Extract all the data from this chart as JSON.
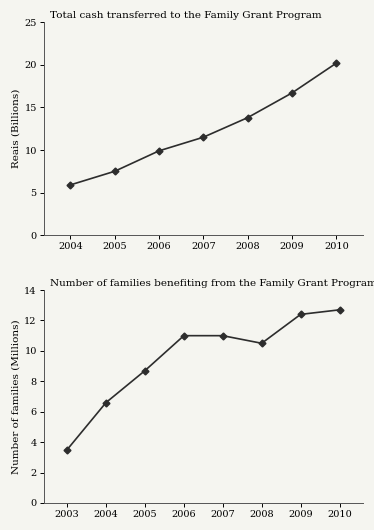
{
  "chart1": {
    "title": "Total cash transferred to the Family Grant Program",
    "x": [
      2004,
      2005,
      2006,
      2007,
      2008,
      2009,
      2010
    ],
    "y": [
      5.9,
      7.5,
      9.9,
      11.5,
      13.8,
      16.7,
      20.2
    ],
    "ylabel": "Reais (Billions)",
    "xlim": [
      2003.4,
      2010.6
    ],
    "ylim": [
      0,
      25
    ],
    "yticks": [
      0,
      5,
      10,
      15,
      20,
      25
    ],
    "xticks": [
      2004,
      2005,
      2006,
      2007,
      2008,
      2009,
      2010
    ]
  },
  "chart2": {
    "title": "Number of families benefiting from the Family Grant Program",
    "x": [
      2003,
      2004,
      2005,
      2006,
      2007,
      2008,
      2009,
      2010
    ],
    "y": [
      3.5,
      6.6,
      8.7,
      11.0,
      11.0,
      10.5,
      12.4,
      12.7
    ],
    "ylabel": "Number of families (Millions)",
    "xlim": [
      2002.4,
      2010.6
    ],
    "ylim": [
      0,
      14
    ],
    "yticks": [
      0,
      2,
      4,
      6,
      8,
      10,
      12,
      14
    ],
    "xticks": [
      2003,
      2004,
      2005,
      2006,
      2007,
      2008,
      2009,
      2010
    ]
  },
  "line_color": "#2d2d2d",
  "marker": "D",
  "markersize": 3.5,
  "linewidth": 1.2,
  "bg_color": "#f5f5f0",
  "plot_bg": "#f5f5f0",
  "title_fontsize": 7.5,
  "label_fontsize": 7.5,
  "tick_fontsize": 7.0
}
